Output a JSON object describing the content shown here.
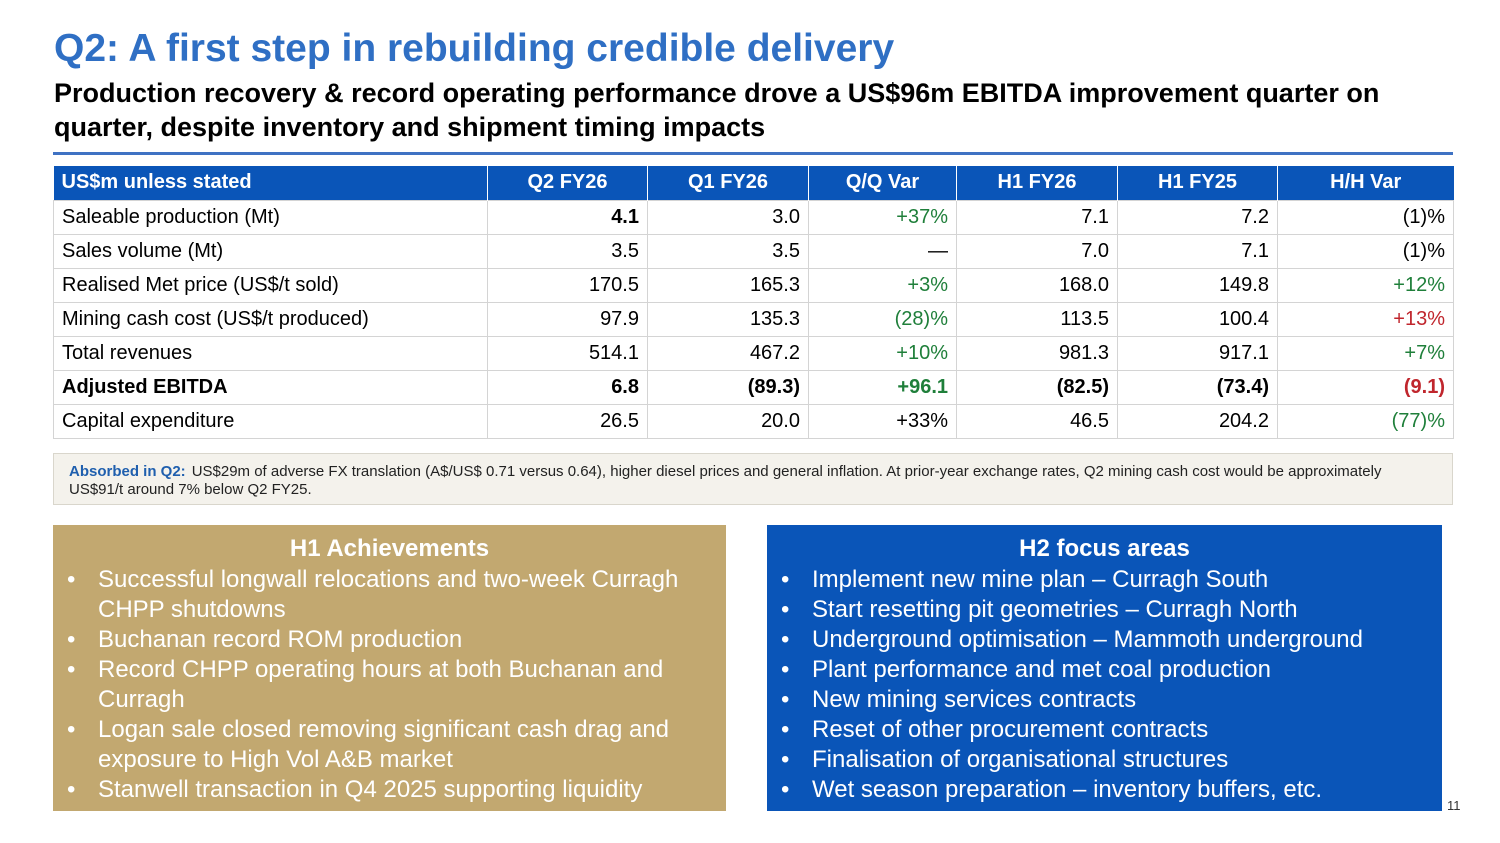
{
  "title": "Q2: A first step in rebuilding credible delivery",
  "subtitle": "Production recovery & record operating  performance drove a US$96m EBITDA improvement quarter on quarter, despite inventory and shipment timing impacts",
  "table": {
    "headers": [
      "US$m unless stated",
      "Q2 FY26",
      "Q1 FY26",
      "Q/Q Var",
      "H1 FY26",
      "H1 FY25",
      "H/H Var"
    ],
    "rows": [
      {
        "label": "Saleable production (Mt)",
        "q2": "4.1",
        "q1": "3.0",
        "qq": "+37%",
        "h1_26": "7.1",
        "h1_25": "7.2",
        "hh": "(1)%"
      },
      {
        "label": "Sales volume (Mt)",
        "q2": "3.5",
        "q1": "3.5",
        "qq": "—",
        "h1_26": "7.0",
        "h1_25": "7.1",
        "hh": "(1)%"
      },
      {
        "label": "Realised Met price (US$/t sold)",
        "q2": "170.5",
        "q1": "165.3",
        "qq": "+3%",
        "h1_26": "168.0",
        "h1_25": "149.8",
        "hh": "+12%"
      },
      {
        "label": "Mining cash cost (US$/t produced)",
        "q2": "97.9",
        "q1": "135.3",
        "qq": "(28)%",
        "h1_26": "113.5",
        "h1_25": "100.4",
        "hh": "+13%"
      },
      {
        "label": "Total revenues",
        "q2": "514.1",
        "q1": "467.2",
        "qq": "+10%",
        "h1_26": "981.3",
        "h1_25": "917.1",
        "hh": "+7%"
      },
      {
        "label": "Adjusted EBITDA",
        "q2": "6.8",
        "q1": "(89.3)",
        "qq": "+96.1",
        "h1_26": "(82.5)",
        "h1_25": "(73.4)",
        "hh": "(9.1)"
      },
      {
        "label": "Capital expenditure",
        "q2": "26.5",
        "q1": "20.0",
        "qq": "+33%",
        "h1_26": "46.5",
        "h1_25": "204.2",
        "hh": "(77)%"
      }
    ]
  },
  "note": {
    "lead": "Absorbed in Q2:",
    "text": "US$29m of adverse FX translation (A$/US$ 0.71 versus 0.64), higher diesel prices and general inflation. At prior-year exchange rates, Q2 mining cash cost would be approximately US$91/t around 7% below Q2 FY25."
  },
  "colors": {
    "title": "#2f6fc4",
    "header_bg": "#0a55b8",
    "positive": "#1f7f3a",
    "negative": "#c0262d",
    "achievements_bg": "#c2a870",
    "focus_bg": "#0a55b8"
  },
  "achievements": {
    "title": "H1 Achievements",
    "items": [
      "Successful longwall relocations and two-week Curragh CHPP shutdowns",
      "Buchanan record ROM production",
      "Record CHPP operating hours at both Buchanan and Curragh",
      "Logan sale closed removing significant cash drag and exposure to High Vol A&B market",
      "Stanwell transaction in Q4 2025 supporting liquidity"
    ]
  },
  "focus": {
    "title": "H2 focus areas",
    "items": [
      "Implement new mine plan – Curragh South",
      "Start resetting pit geometries – Curragh North",
      "Underground optimisation – Mammoth underground",
      "Plant performance and met coal production",
      "New mining services contracts",
      "Reset of other procurement contracts",
      "Finalisation of organisational structures",
      "Wet season preparation – inventory buffers, etc."
    ]
  },
  "bullet": "•",
  "page_number": "11"
}
